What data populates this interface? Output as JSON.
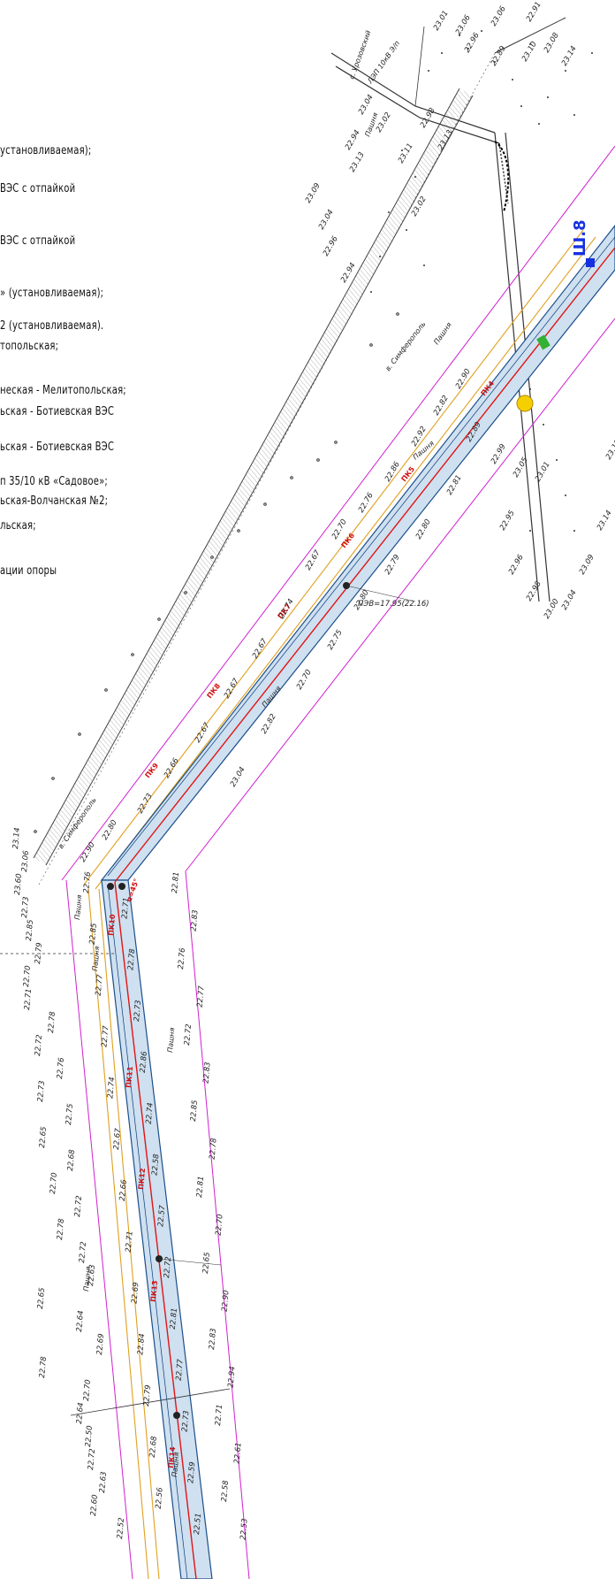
{
  "legend": {
    "lines": [
      "установливаемая);",
      "ВЭС с отпайкой",
      "ВЭС с отпайкой",
      "» (установливаемая);",
      "2 (установливаемая).",
      "топольская;",
      "неская - Мелитопольская;",
      "ьская - Ботиевская ВЭС",
      "ьская - Ботиевская ВЭС",
      "п 35/10 кВ «Садовое»;",
      "ьская-Волчанская №2;",
      "льская;",
      "ации опоры"
    ]
  },
  "map": {
    "road_labels": [
      "в. Симферополь",
      "в. Симферополь",
      "с. Урозовский",
      "ЛЭП 10кВ Э/п"
    ],
    "land_labels": [
      "Пашня",
      "Пашня",
      "Пашня",
      "Пашня",
      "Пашня",
      "Пашня",
      "Пашня",
      "Пашня",
      "Пашня"
    ],
    "blue_mark": "Ш.8",
    "angle_label": "α=45°",
    "pk_labels": [
      "ПК4",
      "ПК5",
      "ПК6",
      "ПК7",
      "ПК8",
      "ПК9",
      "ПК10",
      "ПК11",
      "ПК12",
      "ПК13",
      "ПК14"
    ],
    "elevations_upper_right": [
      "23.01",
      "23.06",
      "23.06",
      "22.91",
      "22.96",
      "22.89",
      "23.10",
      "23.08",
      "23.14",
      "22.94",
      "23.04",
      "23.13",
      "23.09",
      "23.04",
      "22.96",
      "22.94",
      "23.02",
      "23.11",
      "22.98",
      "23.13",
      "23.02",
      "22.90",
      "22.82",
      "22.92",
      "22.86",
      "22.76",
      "22.70",
      "22.67",
      "22.74",
      "22.67",
      "22.67",
      "22.67",
      "22.66",
      "22.73",
      "22.80",
      "22.90",
      "22.89",
      "22.81",
      "22.80",
      "22.79",
      "22.80",
      "22.75",
      "22.70",
      "22.82",
      "23.04",
      "22.99",
      "23.05",
      "23.01",
      "22.95",
      "22.96",
      "22.98",
      "23.00",
      "23.04",
      "23.09",
      "23.18",
      "23.14"
    ],
    "elevations_left": [
      "23.14",
      "23.06",
      "23.60",
      "22.73",
      "22.85",
      "22.79",
      "22.70",
      "22.71",
      "22.78",
      "22.72",
      "22.76",
      "22.73",
      "22.75",
      "22.65",
      "22.68",
      "22.70",
      "22.72",
      "22.78",
      "22.72",
      "22.63",
      "22.65",
      "22.64",
      "22.69",
      "22.78",
      "22.70",
      "22.64",
      "22.50",
      "22.72",
      "22.63",
      "22.60",
      "22.52"
    ],
    "elevations_corridor": [
      "22.76",
      "22.71",
      "22.85",
      "22.78",
      "22.77",
      "22.73",
      "22.77",
      "22.86",
      "22.74",
      "22.74",
      "22.67",
      "22.58",
      "22.66",
      "22.57",
      "22.71",
      "22.72",
      "22.69",
      "22.81",
      "22.84",
      "22.77",
      "22.79",
      "22.73",
      "22.68",
      "22.59",
      "22.56",
      "22.51"
    ],
    "elevations_right": [
      "22.81",
      "22.83",
      "22.76",
      "22.77",
      "22.72",
      "22.83",
      "22.85",
      "22.78",
      "22.81",
      "22.70",
      "22.65",
      "22.90",
      "22.83",
      "22.94",
      "22.71",
      "22.61",
      "22.58",
      "22.53"
    ],
    "cross_label": "ПЭВ=17.95(22.16)"
  },
  "colors": {
    "corridor_fill": "#cfe0f0",
    "corridor_edge": "#1b4f8a",
    "axis_red": "#e01515",
    "boundary_magenta": "#d020d0",
    "orange_line": "#e0a020",
    "road": "#444444",
    "blue_mark": "#1730e0",
    "marker_yellow": "#f5d000"
  }
}
